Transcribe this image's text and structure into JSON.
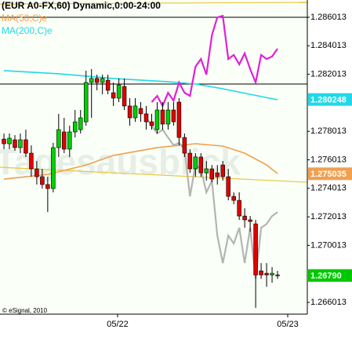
{
  "chart_data": {
    "type": "candlestick",
    "title": "(EUR A0-FX,60) Dynamic,0:00-24:00",
    "watermark": "Tagesausblick",
    "source": "© eSignal, 2010",
    "ylim": [
      1.265187,
      1.287225
    ],
    "yticks": [
      1.286013,
      1.284013,
      1.282013,
      1.278013,
      1.276013,
      1.274013,
      1.272013,
      1.270013,
      1.266013
    ],
    "xlim": [
      -0.72,
      55.44
    ],
    "xticks": [
      {
        "value": 20.77,
        "label": "05/22"
      },
      {
        "value": 51.86,
        "label": "05/23"
      }
    ],
    "up_color": "#00d000",
    "down_color": "#e00000",
    "open": [
      1.27747,
      1.27714,
      1.27742,
      1.27687,
      1.27742,
      1.27648,
      1.27538,
      1.27483,
      1.27428,
      1.274,
      1.27687,
      1.27797,
      1.27676,
      1.27797,
      1.27813,
      1.27868,
      1.28144,
      1.28172,
      1.28144,
      1.2816,
      1.28072,
      1.28034,
      1.28116,
      1.27979,
      1.27896,
      1.27962,
      1.27924,
      1.27868,
      1.27813,
      1.27951,
      1.27852,
      1.27951,
      1.28006,
      1.27758,
      1.27648,
      1.27538,
      1.27621,
      1.2751,
      1.27538,
      1.2751,
      1.27565,
      1.27483,
      1.27345,
      1.27317,
      1.27207,
      1.2718,
      1.27152,
      1.26822,
      1.26805,
      1.26794,
      1.26794
    ],
    "high": [
      1.27786,
      1.27786,
      1.27775,
      1.27786,
      1.27813,
      1.27703,
      1.27593,
      1.27538,
      1.27483,
      1.2772,
      1.27924,
      1.27896,
      1.27841,
      1.27951,
      1.27951,
      1.28227,
      1.28238,
      1.28199,
      1.28199,
      1.28199,
      1.28144,
      1.28172,
      1.28172,
      1.28034,
      1.28034,
      1.28006,
      1.27979,
      1.27924,
      1.28006,
      1.28006,
      1.28006,
      1.28006,
      1.28034,
      1.27786,
      1.27676,
      1.27648,
      1.27648,
      1.27593,
      1.27565,
      1.27565,
      1.27593,
      1.27538,
      1.27373,
      1.27373,
      1.27262,
      1.27207,
      1.2718,
      1.26877,
      1.26877,
      1.26849,
      1.26822
    ],
    "low": [
      1.27676,
      1.27676,
      1.27665,
      1.27648,
      1.27621,
      1.27483,
      1.27428,
      1.274,
      1.27235,
      1.27373,
      1.27621,
      1.27648,
      1.27621,
      1.27758,
      1.27786,
      1.27841,
      1.27896,
      1.28089,
      1.28061,
      1.28061,
      1.27979,
      1.28006,
      1.27951,
      1.27841,
      1.27868,
      1.27868,
      1.27813,
      1.27813,
      1.27786,
      1.27813,
      1.27813,
      1.27841,
      1.27703,
      1.27621,
      1.2751,
      1.27483,
      1.27483,
      1.27455,
      1.27444,
      1.27428,
      1.27455,
      1.27317,
      1.2729,
      1.2718,
      1.27125,
      1.27097,
      1.26563,
      1.26766,
      1.26711,
      1.26739,
      1.26766
    ],
    "close": [
      1.27714,
      1.27753,
      1.27687,
      1.27742,
      1.27648,
      1.27538,
      1.27483,
      1.27428,
      1.274,
      1.27687,
      1.27813,
      1.27676,
      1.27797,
      1.27868,
      1.27896,
      1.28144,
      1.28172,
      1.28144,
      1.28172,
      1.28089,
      1.28034,
      1.28127,
      1.27979,
      1.27896,
      1.27979,
      1.27924,
      1.27868,
      1.27841,
      1.27951,
      1.27852,
      1.27951,
      1.27868,
      1.27758,
      1.27648,
      1.27538,
      1.27621,
      1.2751,
      1.27538,
      1.27466,
      1.27483,
      1.27483,
      1.27345,
      1.27317,
      1.27207,
      1.2718,
      1.27169,
      1.26794,
      1.26794,
      1.26794,
      1.26805,
      1.26788
    ],
    "series": [
      {
        "name": "MA(50,C)e",
        "color": "#f0a050",
        "x": [
          0,
          8,
          15,
          20,
          28,
          35,
          40,
          44,
          48,
          50
        ],
        "values": [
          1.27466,
          1.27499,
          1.27565,
          1.27632,
          1.27687,
          1.27714,
          1.27698,
          1.27648,
          1.27565,
          1.27505
        ]
      },
      {
        "name": "MA(200,C)e",
        "color": "#20d8e8",
        "x": [
          0,
          10,
          20,
          30,
          35,
          40,
          45,
          50
        ],
        "values": [
          1.28227,
          1.28205,
          1.28172,
          1.28149,
          1.28133,
          1.281,
          1.28061,
          1.28023
        ]
      },
      {
        "color": "#e020d8",
        "x": [
          27,
          28,
          29,
          30,
          31,
          32,
          33,
          34,
          35,
          36,
          37,
          38,
          39,
          40,
          41,
          42,
          43,
          44,
          45,
          46,
          47,
          48,
          49,
          50
        ],
        "values": [
          1.28006,
          1.2805,
          1.27979,
          1.28072,
          1.28017,
          1.28144,
          1.28072,
          1.2805,
          1.28254,
          1.28309,
          1.28199,
          1.28475,
          1.28601,
          1.28612,
          1.28309,
          1.28337,
          1.28271,
          1.28348,
          1.28238,
          1.28144,
          1.28337,
          1.28309,
          1.28326,
          1.28381
        ]
      },
      {
        "color": "#b4b4b4",
        "x": [
          26,
          27,
          28,
          29,
          30,
          31,
          32,
          33,
          34,
          35,
          36,
          37,
          38,
          39,
          40,
          41,
          42,
          43,
          44,
          45,
          46,
          47,
          48,
          49,
          50
        ],
        "values": [
          1.27896,
          1.27841,
          1.27786,
          1.27813,
          1.27758,
          1.27703,
          1.2772,
          1.27676,
          1.27345,
          1.27565,
          1.27538,
          1.27373,
          1.27455,
          1.2707,
          1.26877,
          1.2707,
          1.27014,
          1.27125,
          1.26877,
          1.27125,
          1.26766,
          1.27125,
          1.27152,
          1.27207,
          1.27235
        ]
      }
    ],
    "hlines": [
      {
        "value": 1.28601,
        "color": "#000000"
      },
      {
        "value": 1.28133,
        "color": "#000000"
      }
    ],
    "trendlines": [
      {
        "start": 1.28695,
        "end": 1.28706,
        "color": "#e8c840"
      },
      {
        "start": 1.27549,
        "end": 1.27444,
        "color": "#e8c840"
      }
    ],
    "price_tags": [
      {
        "value": 1.280248,
        "label": "1.280248",
        "color": "#20d8e8"
      },
      {
        "value": 1.275035,
        "label": "1.275035",
        "color": "#f0a050"
      },
      {
        "value": 1.2679,
        "label": "1.26790",
        "color": "#00c800"
      }
    ]
  }
}
